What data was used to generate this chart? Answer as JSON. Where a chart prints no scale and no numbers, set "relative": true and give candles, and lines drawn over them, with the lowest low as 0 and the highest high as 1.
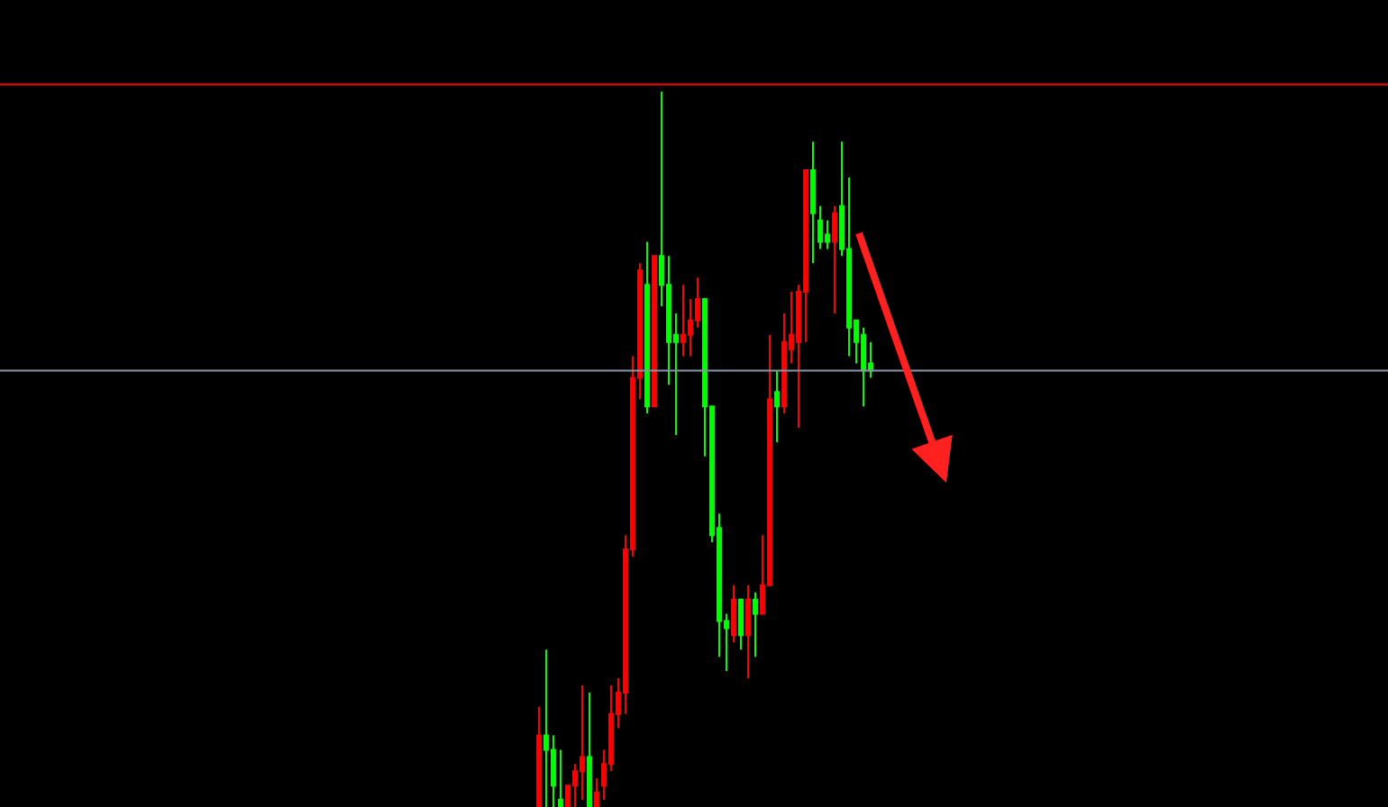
{
  "chart_data": {
    "type": "candlestick",
    "relative": true,
    "grid": false,
    "categories": [
      null,
      null,
      null,
      null,
      null,
      null,
      null,
      null,
      null,
      null,
      null,
      null,
      null,
      null,
      null,
      null,
      null,
      null,
      null,
      null,
      null,
      null,
      null,
      null,
      null,
      null,
      null,
      null,
      null,
      null,
      null,
      null,
      null,
      null,
      null,
      null,
      null,
      null,
      null,
      null,
      null,
      null,
      null,
      null,
      null,
      null,
      null
    ],
    "series": [
      {
        "colors": [
          "#ff0000",
          "#00ff00",
          "#00ff00",
          "#00ff00",
          "#ff0000",
          "#ff0000",
          "#ff0000",
          "#00ff00",
          "#ff0000",
          "#ff0000",
          "#ff0000",
          "#ff0000",
          "#ff0000",
          "#ff0000",
          "#ff0000",
          "#00ff00",
          "#ff0000",
          "#00ff00",
          "#00ff00",
          "#00ff00",
          "#ff0000",
          "#ff0000",
          "#ff0000",
          "#00ff00",
          "#00ff00",
          "#00ff00",
          "#00ff00",
          "#ff0000",
          "#00ff00",
          "#ff0000",
          "#00ff00",
          "#ff0000",
          "#ff0000",
          "#00ff00",
          "#ff0000",
          "#ff0000",
          "#ff0000",
          "#ff0000",
          "#00ff00",
          "#00ff00",
          "#00ff00",
          "#ff0000",
          "#00ff00",
          "#00ff00",
          "#00ff00",
          "#00ff00",
          "#00ff00"
        ],
        "ohlc": [
          [
            0,
            0.14,
            0,
            0.1
          ],
          [
            0.1,
            0.22,
            0,
            0.08
          ],
          [
            0.08,
            0.1,
            0,
            0.03
          ],
          [
            0.01,
            0.08,
            0,
            0
          ],
          [
            0,
            0.03,
            0,
            0.03
          ],
          [
            0.03,
            0.06,
            0,
            0.05
          ],
          [
            0.05,
            0.17,
            0.01,
            0.07
          ],
          [
            0.07,
            0.16,
            0,
            0
          ],
          [
            0,
            0.04,
            0,
            0.02
          ],
          [
            0.03,
            0.08,
            0.01,
            0.06
          ],
          [
            0.06,
            0.17,
            0.05,
            0.13
          ],
          [
            0.13,
            0.18,
            0.11,
            0.16
          ],
          [
            0.16,
            0.38,
            0.13,
            0.36
          ],
          [
            0.36,
            0.63,
            0.35,
            0.6
          ],
          [
            0.6,
            0.76,
            0.57,
            0.75
          ],
          [
            0.73,
            0.79,
            0.55,
            0.56
          ],
          [
            0.56,
            0.77,
            0.56,
            0.77
          ],
          [
            0.77,
            1,
            0.7,
            0.73
          ],
          [
            0.73,
            0.77,
            0.59,
            0.65
          ],
          [
            0.66,
            0.69,
            0.52,
            0.65
          ],
          [
            0.65,
            0.73,
            0.63,
            0.66
          ],
          [
            0.66,
            0.71,
            0.63,
            0.68
          ],
          [
            0.68,
            0.74,
            0.67,
            0.71
          ],
          [
            0.71,
            0.71,
            0.49,
            0.56
          ],
          [
            0.56,
            0.56,
            0.37,
            0.38
          ],
          [
            0.39,
            0.41,
            0.21,
            0.26
          ],
          [
            0.26,
            0.27,
            0.19,
            0.25
          ],
          [
            0.24,
            0.31,
            0.23,
            0.29
          ],
          [
            0.29,
            0.29,
            0.22,
            0.24
          ],
          [
            0.24,
            0.31,
            0.18,
            0.29
          ],
          [
            0.29,
            0.3,
            0.21,
            0.27
          ],
          [
            0.27,
            0.38,
            0.27,
            0.31
          ],
          [
            0.31,
            0.66,
            0.31,
            0.57
          ],
          [
            0.58,
            0.61,
            0.51,
            0.56
          ],
          [
            0.56,
            0.69,
            0.55,
            0.65
          ],
          [
            0.64,
            0.72,
            0.62,
            0.66
          ],
          [
            0.65,
            0.73,
            0.53,
            0.72
          ],
          [
            0.72,
            0.89,
            0.65,
            0.89
          ],
          [
            0.89,
            0.93,
            0.76,
            0.83
          ],
          [
            0.82,
            0.84,
            0.78,
            0.79
          ],
          [
            0.8,
            0.82,
            0.78,
            0.79
          ],
          [
            0.79,
            0.84,
            0.69,
            0.83
          ],
          [
            0.84,
            0.93,
            0.77,
            0.78
          ],
          [
            0.78,
            0.88,
            0.63,
            0.67
          ],
          [
            0.68,
            0.68,
            0.62,
            0.65
          ],
          [
            0.66,
            0.67,
            0.56,
            0.61
          ],
          [
            0.62,
            0.65,
            0.6,
            0.61
          ]
        ]
      }
    ],
    "ref_lines": [
      {
        "axis": "y",
        "value": 1.01,
        "color": "#ff0000"
      },
      {
        "axis": "y",
        "value": 0.61,
        "color": "#8a94a6"
      }
    ]
  }
}
